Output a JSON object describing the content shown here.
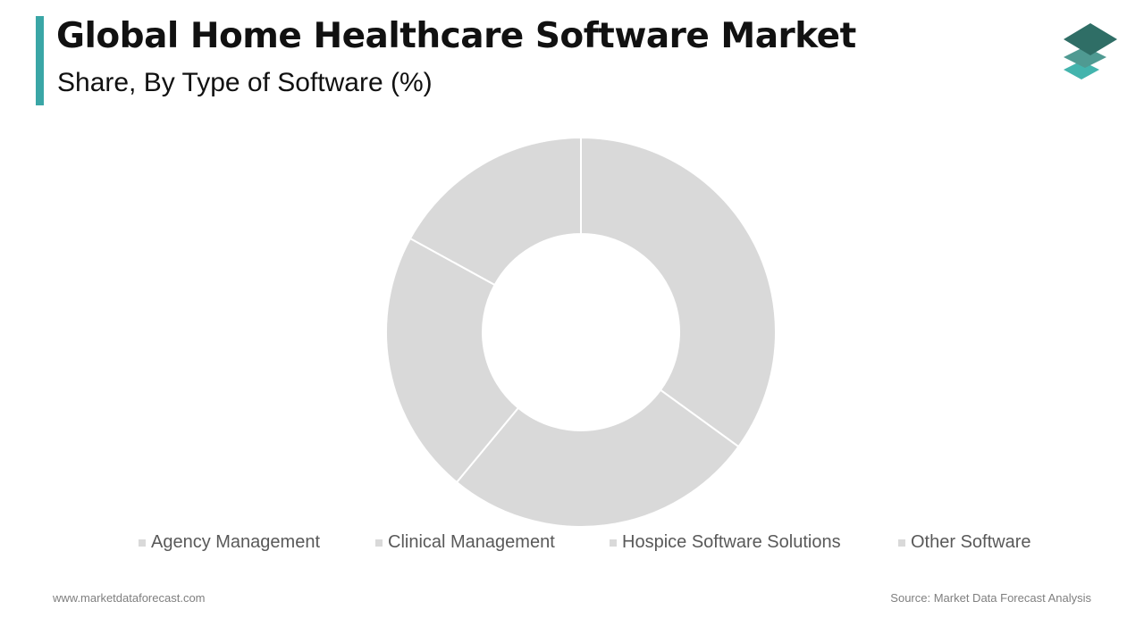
{
  "header": {
    "title": "Global Home Healthcare Software Market",
    "subtitle": "Share, By Type of Software (%)"
  },
  "colors": {
    "accent": "#3aa6a6",
    "slice_fill": "#d9d9d9",
    "slice_stroke": "#ffffff",
    "legend_text": "#595959",
    "logo_dark": "#2f6e66",
    "logo_mid": "#4f9a92",
    "logo_light": "#43b4ad"
  },
  "logo": {
    "icon": "stacked-layers-icon"
  },
  "chart_data": {
    "type": "pie",
    "style": "donut",
    "categories": [
      "Agency Management",
      "Clinical Management",
      "Hospice Software Solutions",
      "Other Software"
    ],
    "values": [
      35,
      26,
      22,
      17
    ],
    "start_angle_deg": 0,
    "direction": "clockwise",
    "legend": "bottom",
    "data_labels": false
  },
  "footer": {
    "website": "www.marketdataforecast.com",
    "source": "Source: Market Data Forecast Analysis"
  }
}
